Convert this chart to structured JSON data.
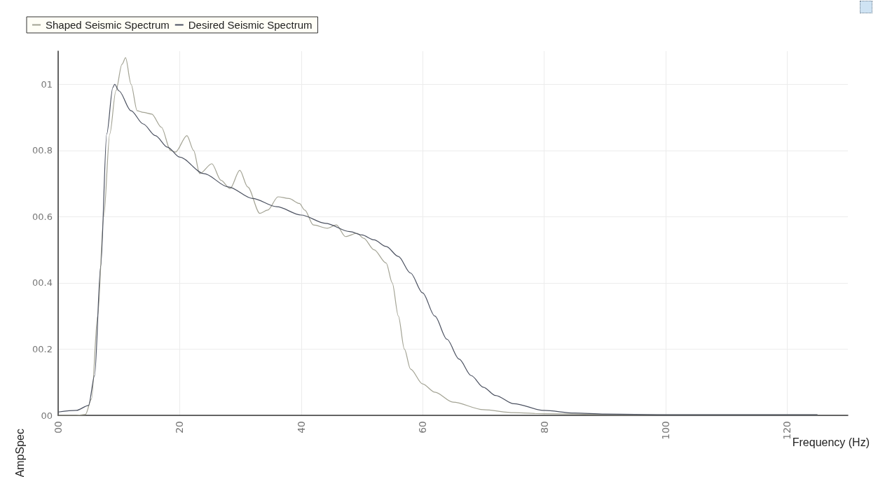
{
  "chart_data": {
    "type": "line",
    "xlabel": "Frequency (Hz)",
    "ylabel": "AmpSpec",
    "xlim": [
      0,
      130
    ],
    "xticks": [
      {
        "value": 0,
        "label": "00"
      },
      20,
      40,
      60,
      80,
      100,
      120
    ],
    "ylim": [
      0,
      1.1
    ],
    "yticks": [
      {
        "value": 0,
        "label": "00"
      },
      {
        "value": 0.2,
        "label": "00.2"
      },
      {
        "value": 0.4,
        "label": "00.4"
      },
      {
        "value": 0.6,
        "label": "00.6"
      },
      {
        "value": 0.8,
        "label": "00.8"
      },
      {
        "value": 1,
        "label": "01"
      }
    ],
    "grid": true,
    "legend": "top",
    "marker": "none",
    "line_style": "solid",
    "series": [
      {
        "name": "Shaped Seismic Spectrum",
        "color": "#a3a394",
        "x": [
          0,
          3,
          4.5,
          5.5,
          6.5,
          7.5,
          8.5,
          9.5,
          10.5,
          11.1,
          12,
          13,
          14,
          15.4,
          17,
          18.5,
          19.3,
          21.2,
          22.3,
          23.3,
          25.3,
          26.8,
          28.3,
          29.9,
          31.2,
          33.2,
          34.5,
          36.2,
          38,
          39.7,
          40.6,
          42,
          44.3,
          45.8,
          47.3,
          49.2,
          50.3,
          52,
          54,
          55,
          56,
          57,
          58,
          60,
          62,
          65,
          70,
          75,
          80,
          90,
          100,
          125
        ],
        "values": [
          0,
          0,
          0.003,
          0.05,
          0.3,
          0.6,
          0.85,
          0.98,
          1.06,
          1.08,
          1.0,
          0.92,
          0.915,
          0.91,
          0.87,
          0.8,
          0.795,
          0.845,
          0.8,
          0.73,
          0.76,
          0.71,
          0.685,
          0.74,
          0.69,
          0.61,
          0.62,
          0.66,
          0.655,
          0.64,
          0.62,
          0.575,
          0.565,
          0.575,
          0.54,
          0.55,
          0.535,
          0.5,
          0.46,
          0.4,
          0.3,
          0.2,
          0.14,
          0.095,
          0.07,
          0.04,
          0.017,
          0.008,
          0.005,
          0.003,
          0.002,
          0.002
        ]
      },
      {
        "name": "Desired Seismic Spectrum",
        "color": "#4b5160",
        "x": [
          0,
          3,
          5,
          6,
          7,
          8,
          9,
          9.3,
          10,
          12,
          14,
          16,
          18,
          20,
          24,
          28,
          32,
          36,
          40,
          44,
          48,
          50,
          52,
          54,
          56,
          58,
          60,
          62,
          64,
          66,
          68,
          70,
          72,
          75,
          80,
          85,
          90,
          100,
          125
        ],
        "values": [
          0.01,
          0.015,
          0.03,
          0.12,
          0.45,
          0.85,
          0.99,
          1.0,
          0.98,
          0.92,
          0.88,
          0.845,
          0.81,
          0.78,
          0.73,
          0.69,
          0.655,
          0.63,
          0.605,
          0.58,
          0.555,
          0.545,
          0.53,
          0.51,
          0.48,
          0.43,
          0.37,
          0.3,
          0.23,
          0.17,
          0.12,
          0.085,
          0.06,
          0.035,
          0.015,
          0.007,
          0.004,
          0.002,
          0.002
        ]
      }
    ]
  }
}
